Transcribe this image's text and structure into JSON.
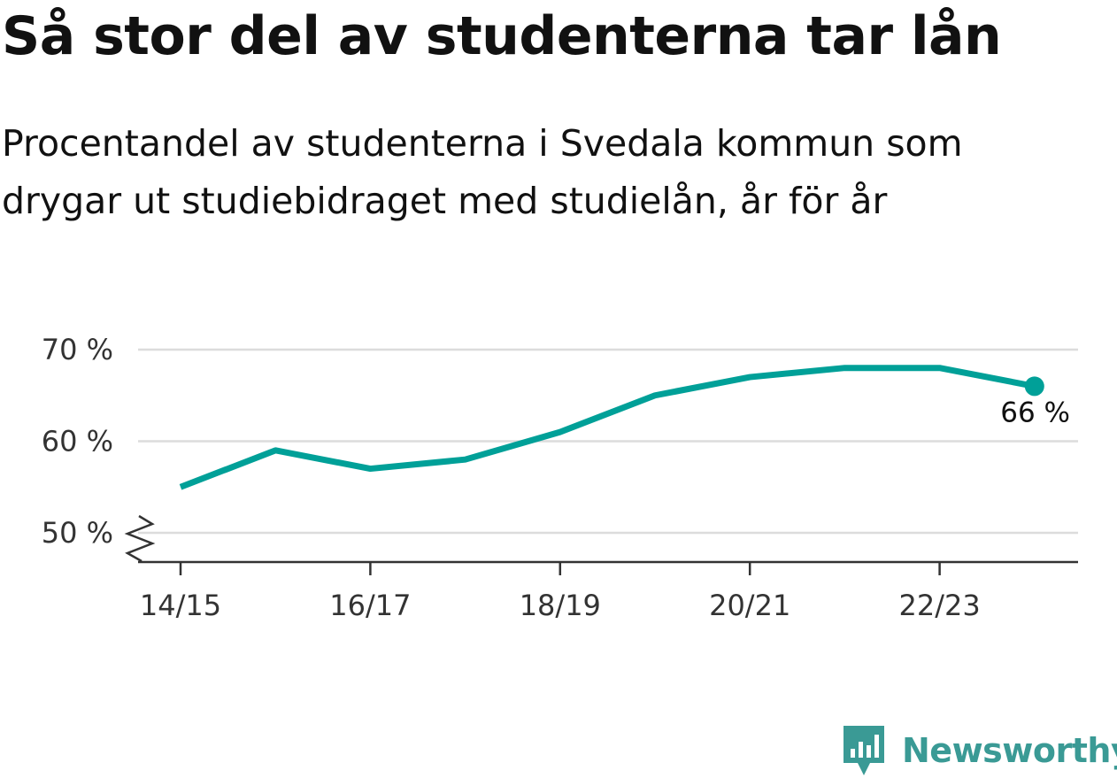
{
  "title": "Så stor del av studenterna tar lån",
  "subtitle": "Procentandel av studenterna i Svedala kommun som drygar ut studiebidraget med studielån, år för år",
  "brand": "Newsworthy",
  "colors": {
    "line": "#00a098",
    "grid": "#dcdcdc",
    "axis": "#333333",
    "brand": "#3a9a95"
  },
  "chart_data": {
    "type": "line",
    "title": "Så stor del av studenterna tar lån",
    "subtitle": "Procentandel av studenterna i Svedala kommun som drygar ut studiebidraget med studielån, år för år",
    "x": [
      "14/15",
      "15/16",
      "16/17",
      "17/18",
      "18/19",
      "19/20",
      "20/21",
      "21/22",
      "22/23",
      "23/24"
    ],
    "x_tick_labels": [
      "14/15",
      "16/17",
      "18/19",
      "20/21",
      "22/23"
    ],
    "values": [
      55,
      59,
      57,
      58,
      61,
      65,
      67,
      68,
      68,
      66
    ],
    "y_ticks": [
      50,
      60,
      70
    ],
    "y_tick_labels": [
      "50 %",
      "60 %",
      "70 %"
    ],
    "ylim": [
      47,
      70
    ],
    "axis_break": true,
    "grid": true,
    "end_label": "66 %"
  }
}
